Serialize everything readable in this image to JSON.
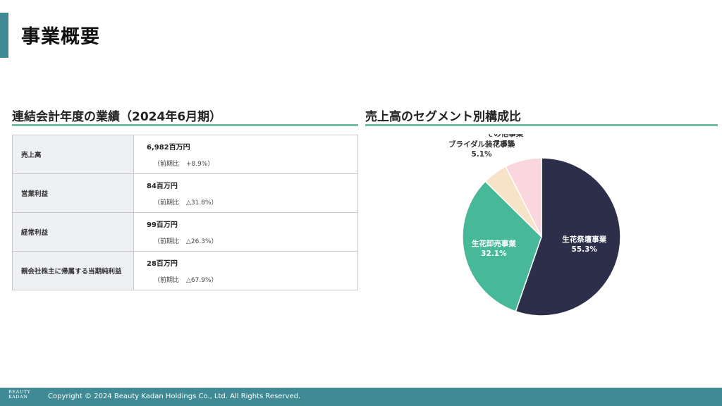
{
  "page_title": "事業概要",
  "left_section": {
    "title": "連結会計年度の業績（2024年6月期）",
    "rows": [
      {
        "label": "売上高",
        "value": "6,982百万円",
        "note_prefix": "（前期比",
        "note_change": "+8.9%）"
      },
      {
        "label": "営業利益",
        "value": "84百万円",
        "note_prefix": "（前期比",
        "note_change": "△31.8%）"
      },
      {
        "label": "経常利益",
        "value": "99百万円",
        "note_prefix": "（前期比",
        "note_change": "△26.3%）"
      },
      {
        "label": "親会社株主に帰属する当期純利益",
        "value": "28百万円",
        "note_prefix": "（前期比",
        "note_change": "△67.9%）"
      }
    ]
  },
  "right_section": {
    "title": "売上高のセグメント別構成比"
  },
  "chart_data": {
    "type": "pie",
    "start_angle_deg": 0,
    "direction": "clockwise",
    "slices": [
      {
        "label": "生花祭壇事業",
        "value": 55.3,
        "display": "55.3%",
        "color": "#2d2f4a"
      },
      {
        "label": "生花卸売事業",
        "value": 32.1,
        "display": "32.1%",
        "color": "#47b898"
      },
      {
        "label": "ブライダル装花事業",
        "value": 5.1,
        "display": "5.1%",
        "color": "#f7e3c8"
      },
      {
        "label": "その他事業",
        "value": 7.5,
        "display": "7.5%",
        "color": "#fad6df"
      }
    ]
  },
  "footer": {
    "logo_line1": "BEAUTY",
    "logo_line2": "KADAN",
    "copyright": "Copyright © 2024 Beauty Kadan Holdings Co., Ltd.  All Rights Reserved."
  }
}
